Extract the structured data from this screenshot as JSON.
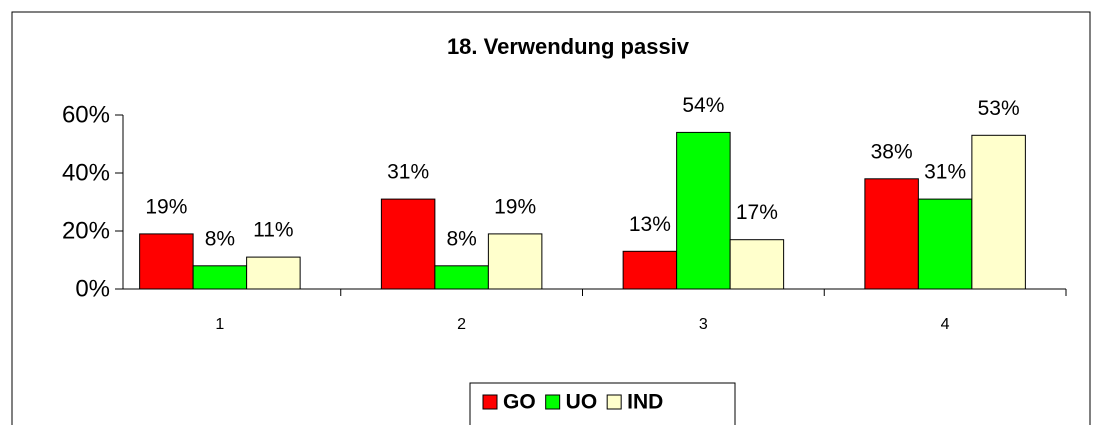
{
  "chart_data": {
    "type": "bar",
    "title": "18. Verwendung passiv",
    "categories": [
      "1",
      "2",
      "3",
      "4"
    ],
    "series": [
      {
        "name": "GO",
        "color": "#ff0000",
        "values": [
          19,
          31,
          13,
          38
        ],
        "value_labels": [
          "19%",
          "31%",
          "13%",
          "38%"
        ]
      },
      {
        "name": "UO",
        "color": "#00ff00",
        "values": [
          8,
          8,
          54,
          31
        ],
        "value_labels": [
          "8%",
          "8%",
          "54%",
          "31%"
        ]
      },
      {
        "name": "IND",
        "color": "#ffffcc",
        "values": [
          11,
          19,
          17,
          53
        ],
        "value_labels": [
          "11%",
          "19%",
          "17%",
          "53%"
        ]
      }
    ],
    "ylim": [
      0,
      60
    ],
    "yticks": [
      {
        "value": 0,
        "label": "0%"
      },
      {
        "value": 20,
        "label": "20%"
      },
      {
        "value": 40,
        "label": "40%"
      },
      {
        "value": 60,
        "label": "60%"
      }
    ],
    "legend": "bottom"
  }
}
